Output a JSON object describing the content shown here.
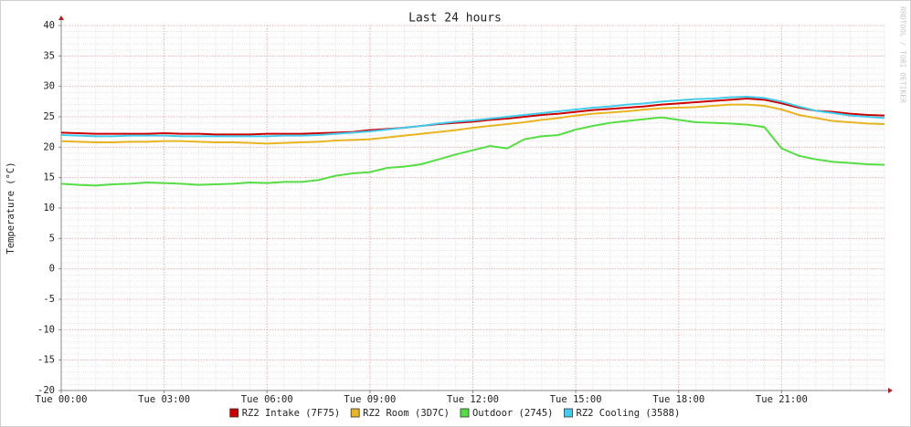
{
  "chart_data": {
    "type": "line",
    "title": "Last 24 hours",
    "y_label": "Temperature (°C)",
    "watermark": "RRDTOOL / TOBI OETIKER",
    "x": [
      0,
      0.5,
      1,
      1.5,
      2,
      2.5,
      3,
      3.5,
      4,
      4.5,
      5,
      5.5,
      6,
      6.5,
      7,
      7.5,
      8,
      8.5,
      9,
      9.5,
      10,
      10.5,
      11,
      11.5,
      12,
      12.5,
      13,
      13.5,
      14,
      14.5,
      15,
      15.5,
      16,
      16.5,
      17,
      17.5,
      18,
      18.5,
      19,
      19.5,
      20,
      20.5,
      21,
      21.5,
      22,
      22.5,
      23,
      23.5,
      24
    ],
    "xlim": [
      0,
      24
    ],
    "xticks": [
      {
        "value": 0,
        "label": "Tue 00:00"
      },
      {
        "value": 3,
        "label": "Tue 03:00"
      },
      {
        "value": 6,
        "label": "Tue 06:00"
      },
      {
        "value": 9,
        "label": "Tue 09:00"
      },
      {
        "value": 12,
        "label": "Tue 12:00"
      },
      {
        "value": 15,
        "label": "Tue 15:00"
      },
      {
        "value": 18,
        "label": "Tue 18:00"
      },
      {
        "value": 21,
        "label": "Tue 21:00"
      }
    ],
    "ylim": [
      -20,
      40
    ],
    "yticks": [
      -20,
      -15,
      -10,
      -5,
      0,
      5,
      10,
      15,
      20,
      25,
      30,
      35,
      40
    ],
    "grid": true,
    "legend": "bottom",
    "series": [
      {
        "name": "RZ2 Intake (7F75)",
        "color": "#cc0000",
        "values": [
          22.4,
          22.3,
          22.2,
          22.2,
          22.2,
          22.2,
          22.3,
          22.2,
          22.2,
          22.1,
          22.1,
          22.1,
          22.2,
          22.2,
          22.2,
          22.3,
          22.4,
          22.5,
          22.8,
          23.0,
          23.2,
          23.5,
          23.8,
          24.0,
          24.2,
          24.5,
          24.7,
          25.0,
          25.3,
          25.5,
          25.8,
          26.1,
          26.3,
          26.5,
          26.7,
          27.0,
          27.2,
          27.4,
          27.6,
          27.8,
          28.0,
          27.8,
          27.2,
          26.5,
          26.0,
          25.8,
          25.5,
          25.3,
          25.2
        ]
      },
      {
        "name": "RZ2 Room (3D7C)",
        "color": "#e8b422",
        "values": [
          21.0,
          20.9,
          20.8,
          20.8,
          20.9,
          20.9,
          21.0,
          21.0,
          20.9,
          20.8,
          20.8,
          20.7,
          20.6,
          20.7,
          20.8,
          20.9,
          21.1,
          21.2,
          21.3,
          21.6,
          21.9,
          22.2,
          22.5,
          22.8,
          23.2,
          23.5,
          23.8,
          24.1,
          24.5,
          24.8,
          25.2,
          25.5,
          25.7,
          25.9,
          26.2,
          26.4,
          26.5,
          26.6,
          26.8,
          27.0,
          27.0,
          26.8,
          26.2,
          25.3,
          24.8,
          24.3,
          24.1,
          23.9,
          23.8
        ]
      },
      {
        "name": "Outdoor (2745)",
        "color": "#55dd44",
        "values": [
          14.0,
          13.8,
          13.7,
          13.9,
          14.0,
          14.2,
          14.1,
          14.0,
          13.8,
          13.9,
          14.0,
          14.2,
          14.1,
          14.3,
          14.3,
          14.6,
          15.3,
          15.7,
          15.9,
          16.6,
          16.8,
          17.2,
          18.0,
          18.8,
          19.5,
          20.2,
          19.8,
          21.3,
          21.8,
          22.0,
          22.9,
          23.5,
          24.0,
          24.3,
          24.6,
          24.9,
          24.5,
          24.1,
          24.0,
          23.9,
          23.7,
          23.3,
          19.8,
          18.6,
          18.0,
          17.6,
          17.4,
          17.2,
          17.1
        ]
      },
      {
        "name": "RZ2 Cooling (3588)",
        "color": "#44ccee",
        "values": [
          22.0,
          21.9,
          21.8,
          21.8,
          21.9,
          21.9,
          21.9,
          21.8,
          21.8,
          21.8,
          21.8,
          21.8,
          21.8,
          21.9,
          21.9,
          22.0,
          22.2,
          22.4,
          22.6,
          22.9,
          23.2,
          23.5,
          23.9,
          24.2,
          24.4,
          24.7,
          25.0,
          25.3,
          25.6,
          25.9,
          26.2,
          26.5,
          26.7,
          27.0,
          27.2,
          27.5,
          27.7,
          27.9,
          28.0,
          28.2,
          28.3,
          28.1,
          27.5,
          26.7,
          26.0,
          25.6,
          25.2,
          25.0,
          24.8
        ]
      }
    ]
  }
}
